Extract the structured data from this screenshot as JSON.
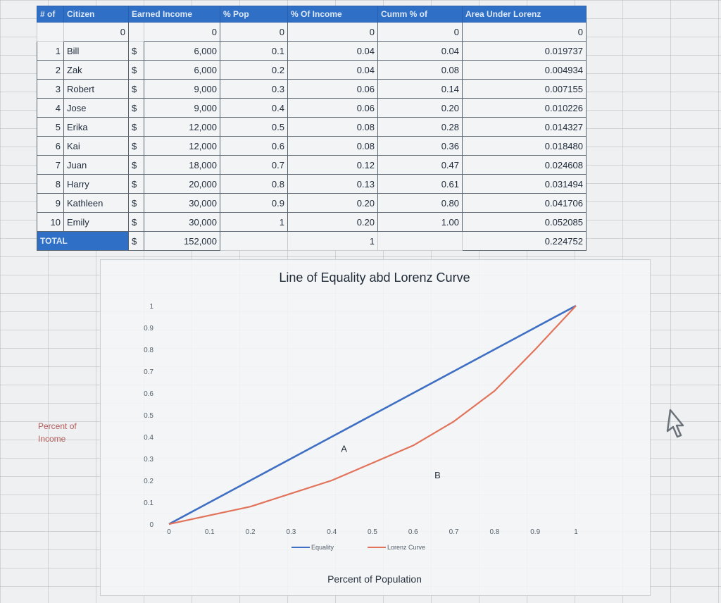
{
  "table": {
    "headers": [
      "# of",
      "Citizen",
      "Earned Income",
      "% Pop",
      "% Of Income",
      "Cumm % of",
      "Area Under Lorenz"
    ],
    "zero_row": {
      "col_num": "0",
      "income": "0",
      "pop": "0",
      "pct_income": "0",
      "cumm": "0",
      "area": "0"
    },
    "rows": [
      {
        "num": "1",
        "citizen": "Bill",
        "dollar": "$",
        "income": "6,000",
        "pop": "0.1",
        "pct_income": "0.04",
        "cumm": "0.04",
        "area": "0.019737"
      },
      {
        "num": "2",
        "citizen": "Zak",
        "dollar": "$",
        "income": "6,000",
        "pop": "0.2",
        "pct_income": "0.04",
        "cumm": "0.08",
        "area": "0.004934"
      },
      {
        "num": "3",
        "citizen": "Robert",
        "dollar": "$",
        "income": "9,000",
        "pop": "0.3",
        "pct_income": "0.06",
        "cumm": "0.14",
        "area": "0.007155"
      },
      {
        "num": "4",
        "citizen": "Jose",
        "dollar": "$",
        "income": "9,000",
        "pop": "0.4",
        "pct_income": "0.06",
        "cumm": "0.20",
        "area": "0.010226"
      },
      {
        "num": "5",
        "citizen": "Erika",
        "dollar": "$",
        "income": "12,000",
        "pop": "0.5",
        "pct_income": "0.08",
        "cumm": "0.28",
        "area": "0.014327"
      },
      {
        "num": "6",
        "citizen": "Kai",
        "dollar": "$",
        "income": "12,000",
        "pop": "0.6",
        "pct_income": "0.08",
        "cumm": "0.36",
        "area": "0.018480"
      },
      {
        "num": "7",
        "citizen": "Juan",
        "dollar": "$",
        "income": "18,000",
        "pop": "0.7",
        "pct_income": "0.12",
        "cumm": "0.47",
        "area": "0.024608"
      },
      {
        "num": "8",
        "citizen": "Harry",
        "dollar": "$",
        "income": "20,000",
        "pop": "0.8",
        "pct_income": "0.13",
        "cumm": "0.61",
        "area": "0.031494"
      },
      {
        "num": "9",
        "citizen": "Kathleen",
        "dollar": "$",
        "income": "30,000",
        "pop": "0.9",
        "pct_income": "0.20",
        "cumm": "0.80",
        "area": "0.041706"
      },
      {
        "num": "10",
        "citizen": "Emily",
        "dollar": "$",
        "income": "30,000",
        "pop": "1",
        "pct_income": "0.20",
        "cumm": "1.00",
        "area": "0.052085"
      }
    ],
    "total": {
      "label": "TOTAL",
      "dollar": "$",
      "income": "152,000",
      "pct_income": "1",
      "area": "0.224752"
    }
  },
  "chart_data": {
    "type": "line",
    "title": "Line of Equality abd Lorenz Curve",
    "xlabel": "Percent of Population",
    "ylabel": "Percent of Income",
    "xlim": [
      0,
      1
    ],
    "ylim": [
      0,
      1
    ],
    "x_ticks": [
      "0",
      "0.1",
      "0.2",
      "0.3",
      "0.4",
      "0.5",
      "0.6",
      "0.7",
      "0.8",
      "0.9",
      "1"
    ],
    "y_ticks": [
      "0",
      "0.1",
      "0.2",
      "0.3",
      "0.4",
      "0.5",
      "0.6",
      "0.7",
      "0.8",
      "0.9",
      "1"
    ],
    "x": [
      0,
      0.1,
      0.2,
      0.3,
      0.4,
      0.5,
      0.6,
      0.7,
      0.8,
      0.9,
      1
    ],
    "series": [
      {
        "name": "Equality",
        "color": "#3f6fc4",
        "values": [
          0,
          0.1,
          0.2,
          0.3,
          0.4,
          0.5,
          0.6,
          0.7,
          0.8,
          0.9,
          1
        ]
      },
      {
        "name": "Lorenz Curve",
        "color": "#e2735a",
        "values": [
          0,
          0.04,
          0.08,
          0.14,
          0.2,
          0.28,
          0.36,
          0.47,
          0.61,
          0.8,
          1
        ]
      }
    ],
    "annotations": [
      {
        "text": "A",
        "x": 0.43,
        "y": 0.33
      },
      {
        "text": "B",
        "x": 0.66,
        "y": 0.21
      }
    ],
    "legend_position": "bottom",
    "grid": false
  }
}
